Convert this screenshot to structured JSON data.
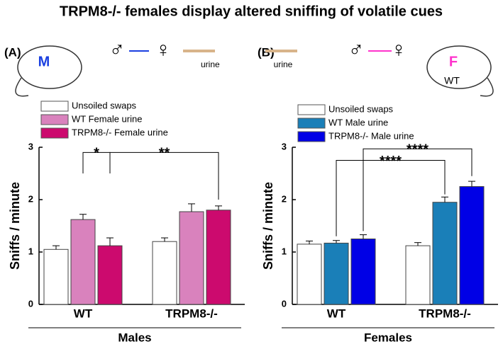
{
  "title": "TRPM8-/- females display altered sniffing of volatile cues",
  "chart_data": [
    {
      "type": "bar",
      "panel": "(A)",
      "ylabel": "Sniffs / minute",
      "group_label": "Males",
      "icons": {
        "mouse": "M",
        "from": "♂",
        "to": "♀",
        "sample": "urine"
      },
      "categories": [
        "WT",
        "TRPM8-/-"
      ],
      "ylim": [
        0,
        3
      ],
      "yticks": [
        0,
        1,
        2,
        3
      ],
      "series": [
        {
          "name": "Unsoiled swaps",
          "color": "#ffffff",
          "values": [
            1.05,
            1.2
          ],
          "errors": [
            0.07,
            0.07
          ]
        },
        {
          "name": "WT Female urine",
          "color": "#d982bd",
          "values": [
            1.62,
            1.77
          ],
          "errors": [
            0.1,
            0.15
          ]
        },
        {
          "name": "TRPM8-/- Female urine",
          "color": "#cc0a6e",
          "values": [
            1.12,
            1.8
          ],
          "errors": [
            0.15,
            0.08
          ]
        }
      ],
      "annotations": [
        "*",
        "**"
      ]
    },
    {
      "type": "bar",
      "panel": "(B)",
      "ylabel": "Sniffs / minute",
      "group_label": "Females",
      "icons": {
        "mouse": "F",
        "mouse_sub": "WT",
        "from": "♂",
        "to": "♀",
        "sample": "urine"
      },
      "categories": [
        "WT",
        "TRPM8-/-"
      ],
      "ylim": [
        0,
        3
      ],
      "yticks": [
        0,
        1,
        2,
        3
      ],
      "series": [
        {
          "name": "Unsoiled swaps",
          "color": "#ffffff",
          "values": [
            1.15,
            1.12
          ],
          "errors": [
            0.06,
            0.06
          ]
        },
        {
          "name": "WT Male urine",
          "color": "#1a7fb8",
          "values": [
            1.17,
            1.95
          ],
          "errors": [
            0.05,
            0.1
          ]
        },
        {
          "name": "TRPM8-/- Male urine",
          "color": "#0000e6",
          "values": [
            1.25,
            2.25
          ],
          "errors": [
            0.08,
            0.1
          ]
        }
      ],
      "annotations": [
        "****",
        "****"
      ]
    }
  ]
}
